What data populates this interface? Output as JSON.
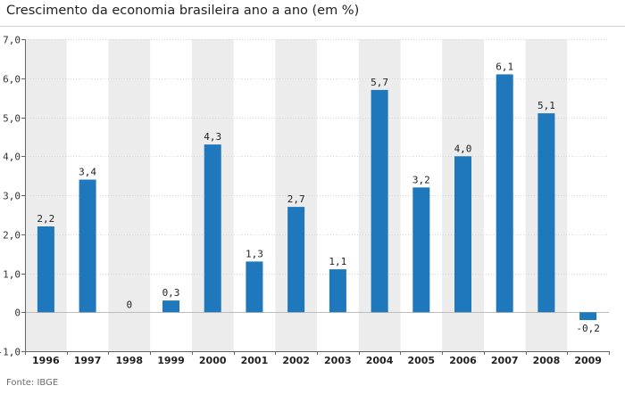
{
  "title": "Crescimento da economia brasileira ano a ano (em %)",
  "source": "Fonte: IBGE",
  "colors": {
    "bar": "#1f78bb",
    "band": "#ececec",
    "grid": "#d6d6d6",
    "axis": "#666666",
    "text": "#222222"
  },
  "chart_data": {
    "type": "bar",
    "title": "Crescimento da economia brasileira ano a ano (em %)",
    "xlabel": "",
    "ylabel": "",
    "categories": [
      "1996",
      "1997",
      "1998",
      "1999",
      "2000",
      "2001",
      "2002",
      "2003",
      "2004",
      "2005",
      "2006",
      "2007",
      "2008",
      "2009"
    ],
    "values": [
      2.2,
      3.4,
      0,
      0.3,
      4.3,
      1.3,
      2.7,
      1.1,
      5.7,
      3.2,
      4.0,
      6.1,
      5.1,
      -0.2
    ],
    "data_labels": [
      "2,2",
      "3,4",
      "0",
      "0,3",
      "4,3",
      "1,3",
      "2,7",
      "1,1",
      "5,7",
      "3,2",
      "4,0",
      "6,1",
      "5,1",
      "-0,2"
    ],
    "yticks": [
      -1,
      0,
      1,
      2,
      3,
      4,
      5,
      6,
      7
    ],
    "ytick_labels": [
      "-1,0",
      "0",
      "1,0",
      "2,0",
      "3,0",
      "4,0",
      "5,0",
      "6,0",
      "7,0"
    ],
    "ylim": [
      -1,
      7
    ],
    "grid": true,
    "alternating_bands": true
  }
}
